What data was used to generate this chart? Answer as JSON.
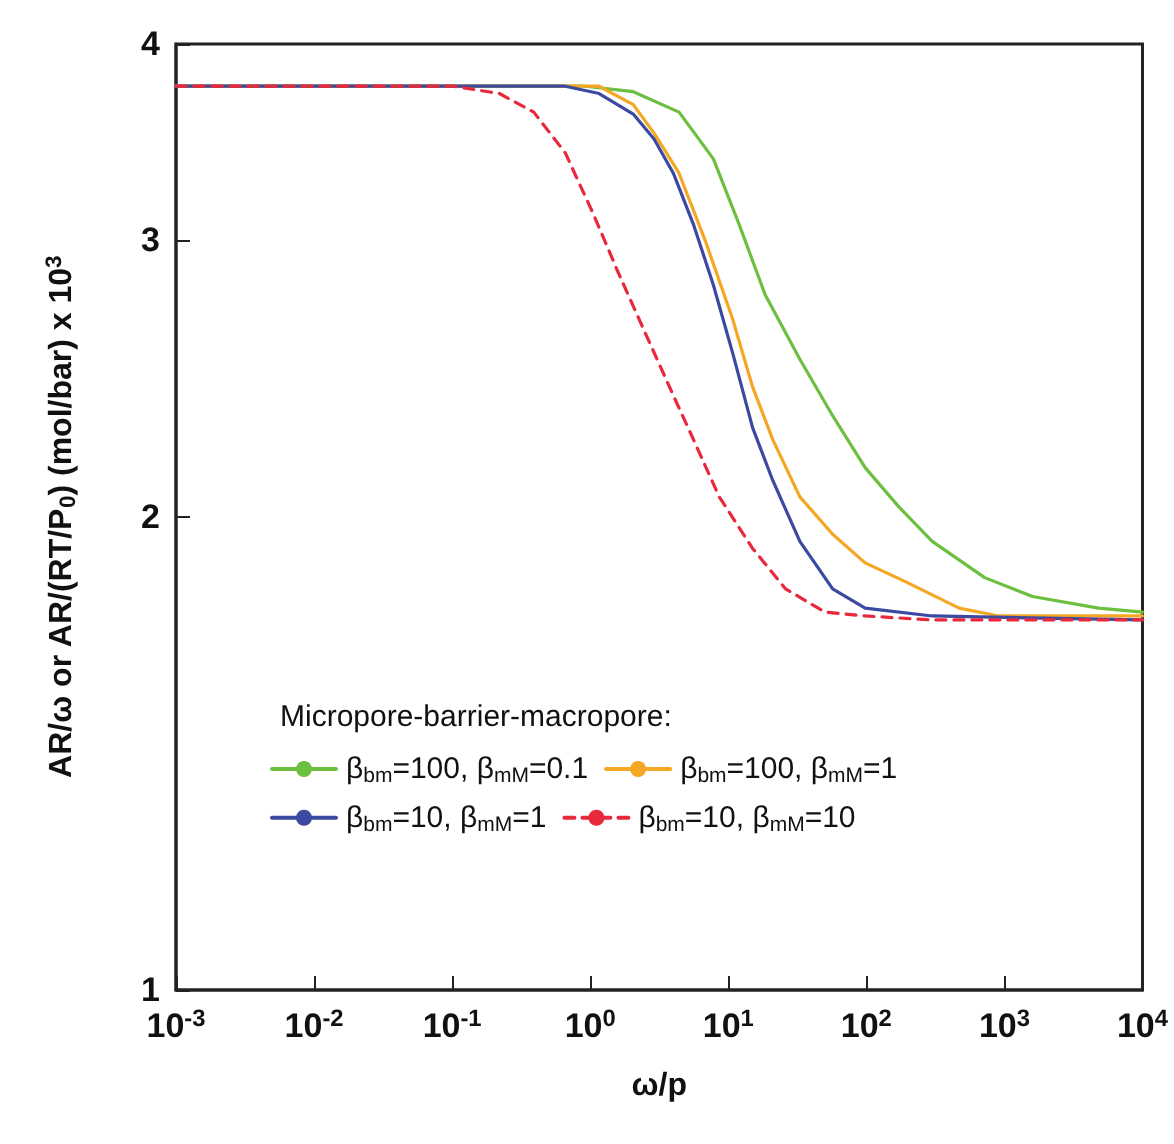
{
  "chart_data": {
    "type": "line",
    "xlabel": "ω/p",
    "ylabel": "AR/ω or AR/(RT/P$_{0}$) (mol/bar) x 10$^{3}$",
    "log": "xy",
    "legend_title": "Micropore-barrier-macropore:",
    "legend": "bottom",
    "grid": false,
    "marker": "none",
    "xlim": [
      0.001,
      10000
    ],
    "xticks": [
      {
        "value": 0.001,
        "label": "10$^{-3}$"
      },
      {
        "value": 0.01,
        "label": "10$^{-2}$"
      },
      {
        "value": 0.1,
        "label": "10$^{-1}$"
      },
      {
        "value": 1,
        "label": "10$^{0}$"
      },
      {
        "value": 10,
        "label": "10$^{1}$"
      },
      {
        "value": 100,
        "label": "10$^{2}$"
      },
      {
        "value": 1000,
        "label": "10$^{3}$"
      },
      {
        "value": 10000,
        "label": "10$^{4}$"
      }
    ],
    "ylim": [
      1,
      4
    ],
    "yticks": [
      1,
      2,
      3,
      4
    ],
    "series": [
      {
        "name": "β$_{bm}$=100, β$_{mM}$=0.1",
        "color": "#6cbf3f",
        "line_style": "solid",
        "x": [
          0.001,
          0.92,
          2.05,
          4.4,
          7.8,
          12,
          18.5,
          33,
          57,
          98,
          172,
          300,
          720,
          1600,
          4800,
          10000
        ],
        "values": [
          3.76,
          3.76,
          3.73,
          3.62,
          3.38,
          3.07,
          2.77,
          2.52,
          2.32,
          2.15,
          2.03,
          1.93,
          1.83,
          1.78,
          1.75,
          1.74
        ]
      },
      {
        "name": "β$_{bm}$=100, β$_{mM}$=1",
        "color": "#f5a623",
        "line_style": "solid",
        "x": [
          0.001,
          1.16,
          2.05,
          2.9,
          4.4,
          6.8,
          10.8,
          15,
          21,
          33,
          57,
          98,
          190,
          470,
          910,
          10000
        ],
        "values": [
          3.76,
          3.76,
          3.66,
          3.51,
          3.31,
          3.0,
          2.67,
          2.42,
          2.24,
          2.06,
          1.95,
          1.87,
          1.82,
          1.75,
          1.73,
          1.73
        ]
      },
      {
        "name": "β$_{bm}$=10, β$_{mM}$=1",
        "color": "#3b4aa0",
        "line_style": "solid",
        "x": [
          0.001,
          0.66,
          1.16,
          2.05,
          2.9,
          4.0,
          5.6,
          7.8,
          10.8,
          15,
          21,
          33,
          57,
          98,
          300,
          10000
        ],
        "values": [
          3.76,
          3.76,
          3.72,
          3.61,
          3.48,
          3.31,
          3.07,
          2.81,
          2.54,
          2.28,
          2.11,
          1.93,
          1.8,
          1.75,
          1.73,
          1.72
        ]
      },
      {
        "name": "β$_{bm}$=10, β$_{mM}$=10",
        "color": "#e8283c",
        "line_style": "dashed",
        "x": [
          0.001,
          0.102,
          0.22,
          0.39,
          0.66,
          1.05,
          1.6,
          2.5,
          4.0,
          5.6,
          8.6,
          15,
          26,
          50,
          98,
          300,
          10000
        ],
        "values": [
          3.76,
          3.76,
          3.72,
          3.62,
          3.41,
          3.12,
          2.86,
          2.62,
          2.39,
          2.24,
          2.06,
          1.91,
          1.8,
          1.74,
          1.73,
          1.72,
          1.72
        ]
      }
    ]
  }
}
